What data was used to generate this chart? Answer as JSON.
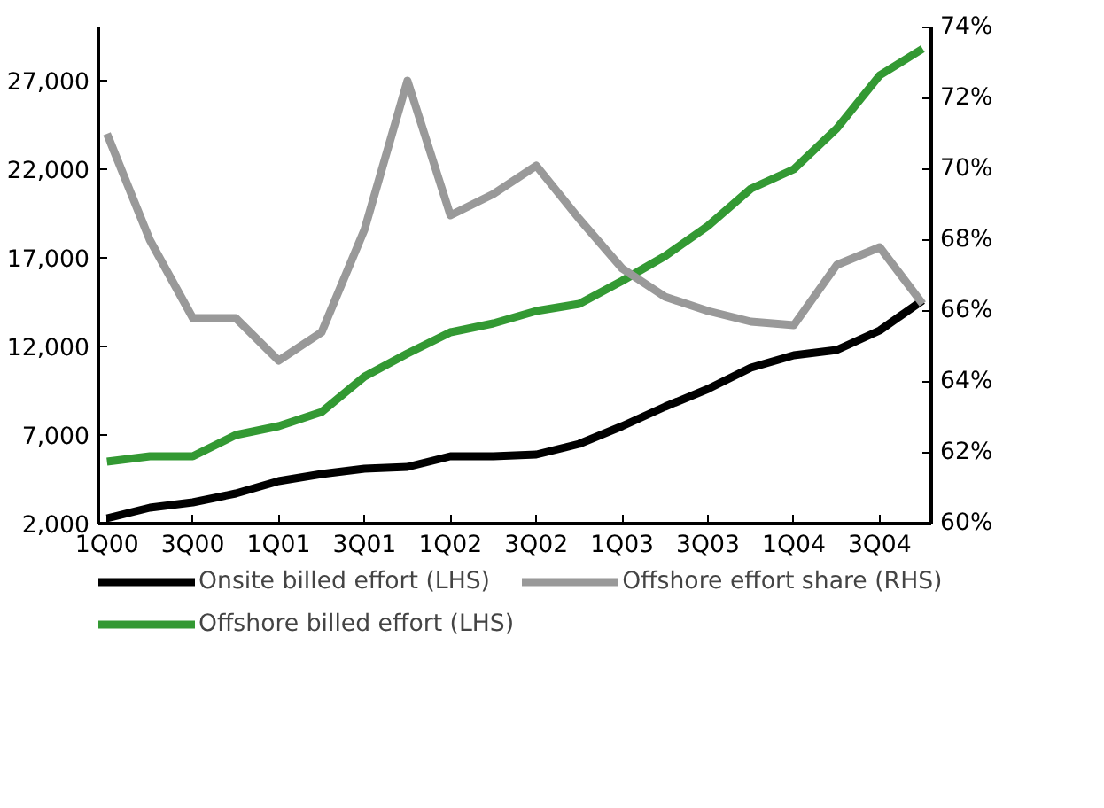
{
  "chart_data": {
    "type": "line",
    "categories": [
      "1Q00",
      null,
      "3Q00",
      null,
      "1Q01",
      null,
      "3Q01",
      null,
      "1Q02",
      null,
      "3Q02",
      null,
      "1Q03",
      null,
      "3Q03",
      null,
      "1Q04",
      null,
      "3Q04",
      null
    ],
    "series": [
      {
        "name": "Onsite billed effort (LHS)",
        "color": "#000000",
        "values": [
          2300,
          2900,
          3200,
          3700,
          4400,
          4800,
          5100,
          5200,
          5800,
          5800,
          5900,
          6500,
          7500,
          8600,
          9600,
          10800,
          11500,
          11800,
          12900,
          14600
        ]
      },
      {
        "name": "Offshore billed effort (LHS)",
        "color": "#339933",
        "values": [
          5500,
          5800,
          5800,
          7000,
          7500,
          8300,
          10300,
          11600,
          12800,
          13300,
          14000,
          14400,
          15700,
          17100,
          18800,
          20900,
          22000,
          24300,
          27300,
          28800
        ]
      },
      {
        "name": "Offshore effort share (RHS)",
        "color": "#999999",
        "axis": "y2",
        "values": [
          71.0,
          68.0,
          65.8,
          65.8,
          64.6,
          65.4,
          68.3,
          72.5,
          68.7,
          69.3,
          70.1,
          68.6,
          67.2,
          66.4,
          66.0,
          65.7,
          65.6,
          67.3,
          67.8,
          66.2
        ]
      }
    ],
    "ylim": [
      2000,
      30000
    ],
    "yticks": [
      {
        "value": 2000,
        "label": "2,000"
      },
      {
        "value": 7000,
        "label": "7,000"
      },
      {
        "value": 12000,
        "label": "12,000"
      },
      {
        "value": 17000,
        "label": "17,000"
      },
      {
        "value": 22000,
        "label": "22,000"
      },
      {
        "value": 27000,
        "label": "27,000"
      }
    ],
    "y2lim": [
      60,
      74
    ],
    "y2ticks": [
      {
        "value": 60,
        "label": "60%"
      },
      {
        "value": 62,
        "label": "62%"
      },
      {
        "value": 64,
        "label": "64%"
      },
      {
        "value": 66,
        "label": "66%"
      },
      {
        "value": 68,
        "label": "68%"
      },
      {
        "value": 70,
        "label": "70%"
      },
      {
        "value": 72,
        "label": "72%"
      },
      {
        "value": 74,
        "label": "74%"
      }
    ],
    "grid": false,
    "legend": "bottom",
    "marker": "none",
    "line_style": "solid"
  }
}
